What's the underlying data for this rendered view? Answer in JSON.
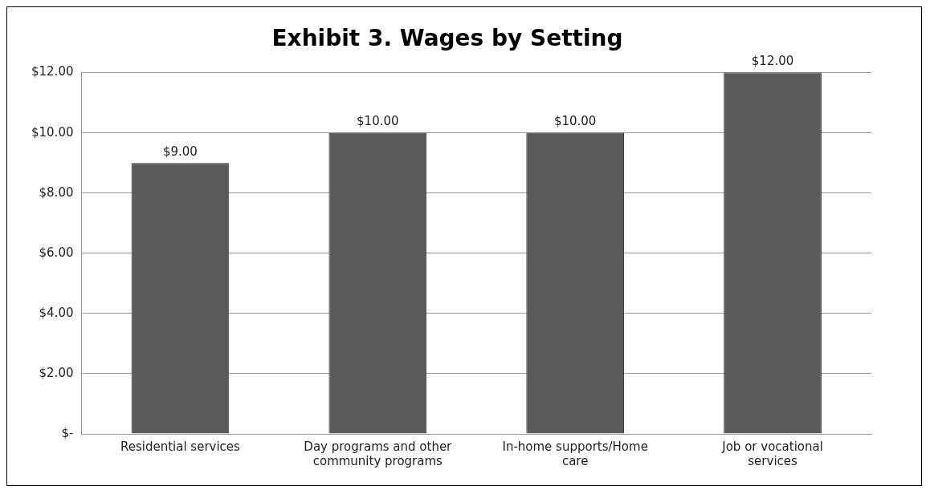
{
  "chart_data": {
    "type": "bar",
    "title": "Exhibit 3. Wages by Setting",
    "categories": [
      "Residential services",
      "Day programs and other community programs",
      "In-home supports/Home care",
      "Job or vocational services"
    ],
    "values": [
      9,
      10,
      10,
      12
    ],
    "value_labels": [
      "$9.00",
      "$10.00",
      "$10.00",
      "$12.00"
    ],
    "color": "#5a5a5a",
    "ylim": [
      0,
      12
    ],
    "yticks": [
      {
        "value": 0,
        "label": "$-"
      },
      {
        "value": 2,
        "label": "$2.00"
      },
      {
        "value": 4,
        "label": "$4.00"
      },
      {
        "value": 6,
        "label": "$6.00"
      },
      {
        "value": 8,
        "label": "$8.00"
      },
      {
        "value": 10,
        "label": "$10.00"
      },
      {
        "value": 12,
        "label": "$12.00"
      }
    ],
    "grid": "y",
    "legend": false
  }
}
